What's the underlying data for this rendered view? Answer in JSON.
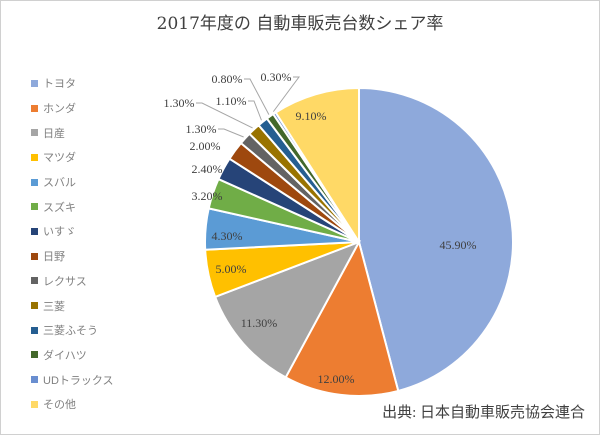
{
  "chart_data": {
    "type": "pie",
    "title": "2017年度の 自動車販売台数シェア率",
    "start_angle": "12 o'clock, clockwise",
    "legend_position": "left",
    "categories": [
      "トヨタ",
      "ホンダ",
      "日産",
      "マツダ",
      "スバル",
      "スズキ",
      "いすゞ",
      "日野",
      "レクサス",
      "三菱",
      "三菱ふそう",
      "ダイハツ",
      "UDトラックス",
      "その他"
    ],
    "values": [
      45.9,
      12.0,
      11.3,
      5.0,
      4.3,
      3.2,
      2.4,
      2.0,
      1.3,
      1.3,
      1.1,
      0.8,
      0.3,
      9.1
    ],
    "data_labels": [
      "45.90%",
      "12.00%",
      "11.30%",
      "5.00%",
      "4.30%",
      "3.20%",
      "2.40%",
      "2.00%",
      "1.30%",
      "1.30%",
      "1.10%",
      "0.80%",
      "0.30%",
      "9.10%"
    ],
    "colors": [
      "#8EA9DB",
      "#ED7D31",
      "#A5A5A5",
      "#FFC000",
      "#5B9BD5",
      "#70AD47",
      "#264478",
      "#9E480E",
      "#636363",
      "#997300",
      "#255E91",
      "#43682B",
      "#698ED0",
      "#FFD966"
    ],
    "source": "出典: 日本自動車販売協会連合"
  }
}
